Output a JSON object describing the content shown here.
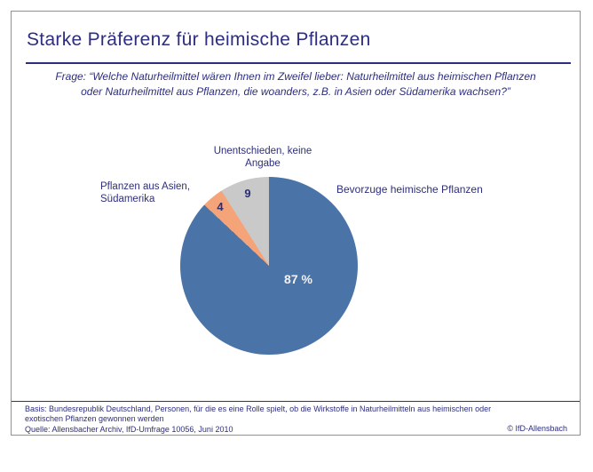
{
  "header": {
    "title": "Starke Präferenz für heimische Pflanzen",
    "question_lines": [
      "Frage: “Welche Naturheilmittel wären Ihnen im Zweifel lieber: Naturheilmittel aus heimischen Pflanzen",
      "oder Naturheilmittel aus Pflanzen, die woanders, z.B. in Asien oder Südamerika wachsen?”"
    ]
  },
  "chart_data": {
    "type": "pie",
    "title": "Starke Präferenz für heimische Pflanzen",
    "unit": "percent",
    "start_angle_deg": 0,
    "direction": "clockwise",
    "legend_position": "callouts",
    "slices": [
      {
        "label": "Bevorzuge heimische Pflanzen",
        "value": 87,
        "display_value": "87 %",
        "color": "#4a74a8"
      },
      {
        "label": "Pflanzen aus Asien, Südamerika",
        "value": 4,
        "display_value": "4",
        "color": "#f4a478"
      },
      {
        "label": "Unentschieden, keine Angabe",
        "value": 9,
        "display_value": "9",
        "color": "#c9c9c9"
      }
    ]
  },
  "footer": {
    "basis_lines": [
      "Basis: Bundesrepublik Deutschland, Personen, für die es eine Rolle spielt, ob die Wirkstoffe in Naturheilmitteln aus heimischen oder",
      "exotischen Pflanzen gewonnen werden"
    ],
    "quelle": "Quelle: Allensbacher Archiv, IfD-Umfrage 10056, Juni 2010",
    "copyright": "© IfD-Allensbach"
  },
  "colors": {
    "navy": "#2d2e7f",
    "frame_border": "#919191",
    "slice_blue": "#4a74a8",
    "slice_orange": "#f4a478",
    "slice_gray": "#c9c9c9"
  }
}
